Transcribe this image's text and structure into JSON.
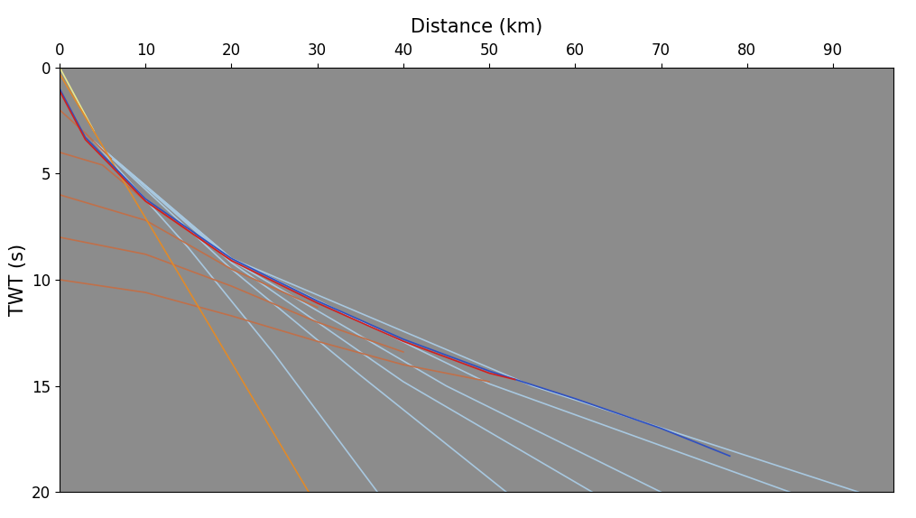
{
  "chart_data": {
    "type": "line",
    "x_label": "Distance (km)",
    "y_label": "TWT (s)",
    "xlim": [
      0,
      97
    ],
    "ylim": [
      20,
      0
    ],
    "xticks": [
      0,
      10,
      20,
      30,
      40,
      50,
      60,
      70,
      80,
      90
    ],
    "yticks": [
      0,
      5,
      10,
      15,
      20
    ],
    "grid": false,
    "series": [
      {
        "color": "#a8c8e0",
        "x": [
          4,
          15,
          25,
          37
        ],
        "values": [
          3.5,
          8.5,
          13.5,
          20
        ]
      },
      {
        "color": "#a8c8e0",
        "x": [
          4,
          20,
          35,
          52
        ],
        "values": [
          3.5,
          9.5,
          14.5,
          20
        ]
      },
      {
        "color": "#a8c8e0",
        "x": [
          4,
          20,
          40,
          62
        ],
        "values": [
          3.5,
          9.2,
          14.8,
          20
        ]
      },
      {
        "color": "#a8c8e0",
        "x": [
          4,
          20,
          45,
          70
        ],
        "values": [
          3.5,
          9.1,
          15.0,
          20
        ]
      },
      {
        "color": "#a8c8e0",
        "x": [
          4,
          20,
          50,
          85
        ],
        "values": [
          3.5,
          9.0,
          14.9,
          20
        ]
      },
      {
        "color": "#a8c8e0",
        "x": [
          4,
          20,
          55,
          93
        ],
        "values": [
          3.5,
          9.0,
          15.0,
          20
        ]
      },
      {
        "color": "#c0704a",
        "x": [
          0,
          3,
          6
        ],
        "values": [
          2,
          3.1,
          4.3
        ]
      },
      {
        "color": "#c0704a",
        "x": [
          0,
          5,
          10,
          20
        ],
        "values": [
          4,
          4.6,
          6.3,
          9.1
        ]
      },
      {
        "color": "#c0704a",
        "x": [
          0,
          10,
          20,
          30
        ],
        "values": [
          6,
          7.2,
          9.5,
          11.3
        ]
      },
      {
        "color": "#c0704a",
        "x": [
          0,
          10,
          20,
          30,
          40
        ],
        "values": [
          8,
          8.8,
          10.3,
          12,
          13.4
        ]
      },
      {
        "color": "#c0704a",
        "x": [
          0,
          10,
          20,
          30,
          40,
          50
        ],
        "values": [
          10,
          10.6,
          11.7,
          12.9,
          14,
          14.8
        ]
      },
      {
        "color": "#e8e890",
        "x": [
          0,
          4
        ],
        "values": [
          0,
          3
        ]
      },
      {
        "color": "#e08a2a",
        "x": [
          0,
          29
        ],
        "values": [
          0.3,
          20
        ]
      },
      {
        "color": "#3050c0",
        "x": [
          0,
          3,
          10,
          20,
          30,
          40,
          50,
          60,
          70,
          78
        ],
        "values": [
          1,
          3.3,
          6.2,
          9.0,
          11.0,
          12.8,
          14.3,
          15.6,
          17.0,
          18.3
        ]
      },
      {
        "color": "#d02020",
        "x": [
          0,
          3,
          10,
          20,
          30,
          40,
          50,
          53
        ],
        "values": [
          1.1,
          3.4,
          6.3,
          9.1,
          11.1,
          12.9,
          14.4,
          14.7
        ]
      }
    ]
  }
}
